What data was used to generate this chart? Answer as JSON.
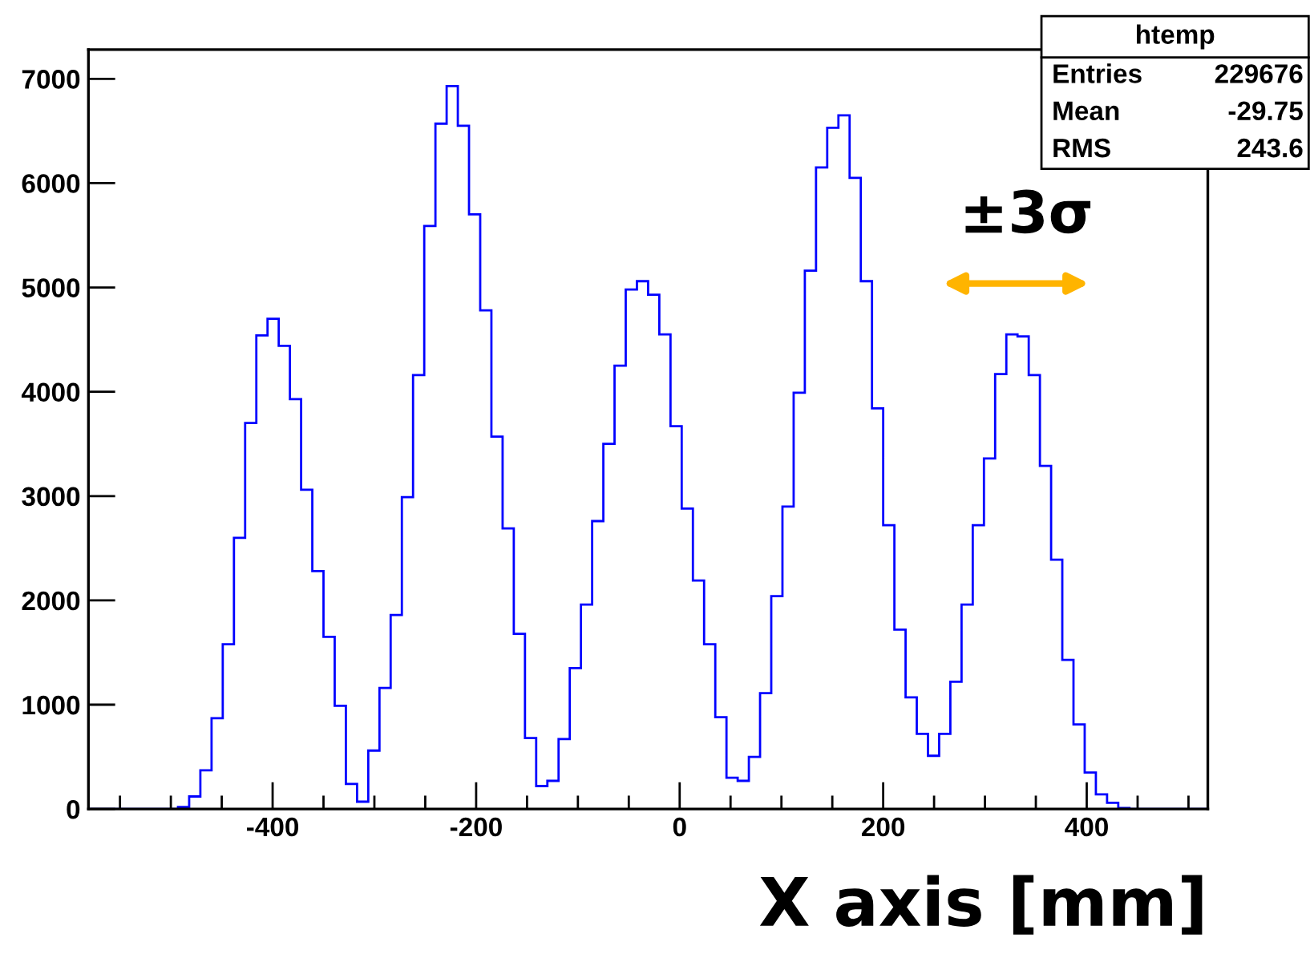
{
  "chart_data": {
    "type": "histogram",
    "xlabel": "X axis [mm]",
    "annotations": [
      "±3σ",
      "htemp",
      "Entries",
      "229676",
      "Mean",
      "-29.75",
      "RMS",
      "243.6"
    ],
    "bins": [
      -581,
      -570,
      -559,
      -548,
      -537,
      -526,
      -515,
      -504,
      -493,
      -482,
      -471,
      -460,
      -449,
      -438,
      -427,
      -416,
      -405,
      -394,
      -383,
      -372,
      -361,
      -350,
      -339,
      -328,
      -317,
      -306,
      -295,
      -284,
      -273,
      -262,
      -251,
      -240,
      -229,
      -218,
      -207,
      -196,
      -185,
      -174,
      -163,
      -152,
      -141,
      -130,
      -119,
      -108,
      -97,
      -86,
      -75,
      -64,
      -53,
      -42,
      -31,
      -20,
      -9,
      2,
      13,
      24,
      35,
      46,
      57,
      68,
      79,
      90,
      101,
      112,
      123,
      134,
      145,
      156,
      167,
      178,
      189,
      200,
      211,
      222,
      233,
      244,
      255,
      266,
      277,
      288,
      299,
      310,
      321,
      332,
      343,
      354,
      365,
      376,
      387,
      398,
      409,
      420,
      431,
      442,
      453,
      464,
      475,
      486,
      497,
      508,
      519
    ],
    "values": [
      0,
      0,
      0,
      0,
      0,
      0,
      0,
      0,
      20,
      120,
      370,
      870,
      1580,
      2600,
      3700,
      4540,
      4700,
      4440,
      3930,
      3060,
      2280,
      1650,
      990,
      240,
      70,
      560,
      1160,
      1860,
      2990,
      4160,
      5590,
      6570,
      6930,
      6550,
      5700,
      4780,
      3570,
      2690,
      1680,
      680,
      220,
      270,
      670,
      1350,
      1960,
      2760,
      3500,
      4250,
      4980,
      5060,
      4930,
      4550,
      3670,
      2880,
      2190,
      1580,
      880,
      300,
      270,
      500,
      1110,
      2040,
      2900,
      3990,
      5160,
      6150,
      6530,
      6650,
      6050,
      5060,
      3840,
      2720,
      1720,
      1070,
      720,
      510,
      720,
      1220,
      1960,
      2720,
      3360,
      4170,
      4550,
      4530,
      4160,
      3290,
      2390,
      1430,
      810,
      350,
      140,
      60,
      10,
      0,
      0,
      0,
      0,
      0,
      0,
      0
    ],
    "color": "#0000ff",
    "xlim": [
      -581,
      519
    ],
    "ylim": [
      0,
      7280
    ],
    "xticks": [
      -400,
      -200,
      0,
      200,
      400
    ],
    "yticks": [
      0,
      1000,
      2000,
      3000,
      4000,
      5000,
      6000,
      7000
    ],
    "grid": false
  }
}
